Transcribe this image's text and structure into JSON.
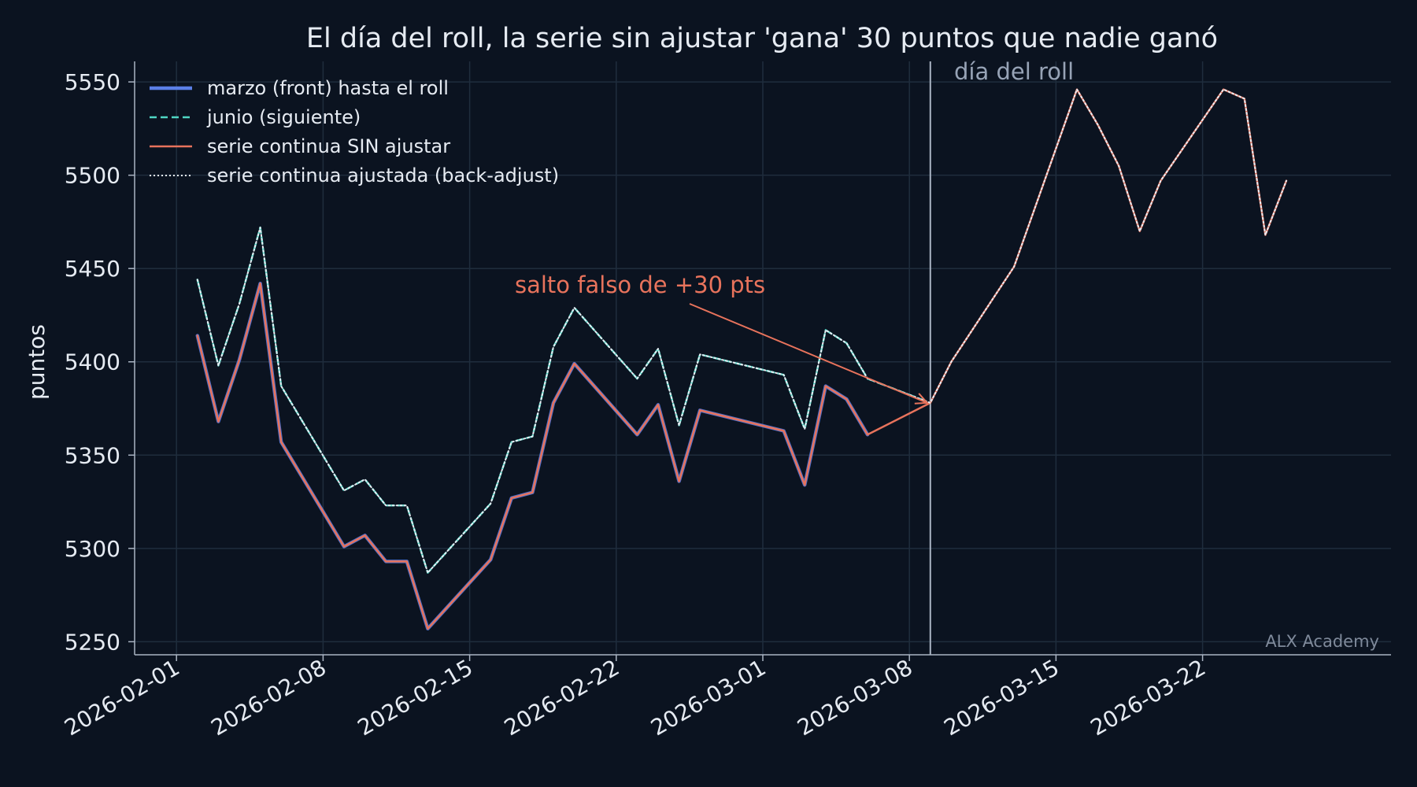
{
  "chart_data": {
    "type": "line",
    "title": "El día del roll, la serie sin ajustar 'gana' 30 puntos que nadie ganó",
    "xlabel": "",
    "ylabel": "puntos",
    "xlim": [
      "2026-01-30",
      "2026-03-31"
    ],
    "ylim": [
      5243,
      5561
    ],
    "x_ticks": [
      "2026-02-01",
      "2026-02-08",
      "2026-02-15",
      "2026-02-22",
      "2026-03-01",
      "2026-03-08",
      "2026-03-15",
      "2026-03-22"
    ],
    "y_ticks": [
      5250,
      5300,
      5350,
      5400,
      5450,
      5500,
      5550
    ],
    "grid": true,
    "legend_position": "top-left",
    "colors": {
      "background": "#0b1320",
      "grid": "#1f2d3d",
      "axis": "#aab4c3",
      "marzo": "#5b7fe6",
      "junio": "#4fd6c4",
      "sin_ajustar": "#e8735c",
      "ajustada": "#e6ebf2",
      "roll_line": "#aab4c3"
    },
    "roll_date": "2026-03-09",
    "roll_label": "día del roll",
    "annotation": {
      "text": "salto falso de +30 pts",
      "points_to": [
        "2026-03-09",
        5378
      ]
    },
    "watermark": "ALX Academy",
    "x": [
      "2026-02-02",
      "2026-02-03",
      "2026-02-04",
      "2026-02-05",
      "2026-02-06",
      "2026-02-09",
      "2026-02-10",
      "2026-02-11",
      "2026-02-12",
      "2026-02-13",
      "2026-02-16",
      "2026-02-17",
      "2026-02-18",
      "2026-02-19",
      "2026-02-20",
      "2026-02-23",
      "2026-02-24",
      "2026-02-25",
      "2026-02-26",
      "2026-03-02",
      "2026-03-03",
      "2026-03-04",
      "2026-03-05",
      "2026-03-06",
      "2026-03-09",
      "2026-03-10",
      "2026-03-11",
      "2026-03-12",
      "2026-03-13",
      "2026-03-16",
      "2026-03-17",
      "2026-03-18",
      "2026-03-19",
      "2026-03-20",
      "2026-03-23",
      "2026-03-24",
      "2026-03-25",
      "2026-03-26",
      "2026-03-27"
    ],
    "series": [
      {
        "name": "marzo (front) hasta el roll",
        "style": "solid-thick",
        "values": [
          5414,
          5368,
          5401,
          5442,
          5357,
          5301,
          5307,
          5293,
          5293,
          5257,
          5294,
          5327,
          5330,
          5378,
          5399,
          5361,
          5377,
          5336,
          5374,
          5363,
          5334,
          5387,
          5380,
          5361,
          null,
          null,
          null,
          null,
          null,
          null,
          null,
          null,
          null,
          null,
          null,
          null,
          null,
          null,
          null
        ]
      },
      {
        "name": "junio (siguiente)",
        "style": "dashed",
        "values": [
          5444,
          5398,
          5431,
          5472,
          5387,
          5331,
          5337,
          5323,
          5323,
          5287,
          5324,
          5357,
          5360,
          5408,
          5429,
          5391,
          5407,
          5366,
          5404,
          5393,
          5364,
          5417,
          5410,
          5391,
          5378,
          null,
          null,
          null,
          null,
          null,
          null,
          null,
          null,
          null,
          null,
          null,
          null,
          null,
          null
        ]
      },
      {
        "name": "serie continua SIN ajustar",
        "style": "solid-thin",
        "values": [
          5414,
          5368,
          5401,
          5442,
          5357,
          5301,
          5307,
          5293,
          5293,
          5257,
          5294,
          5327,
          5330,
          5378,
          5399,
          5361,
          5377,
          5336,
          5374,
          5363,
          5334,
          5387,
          5380,
          5361,
          5378,
          5400,
          5417,
          5434,
          5451,
          5546,
          5527,
          5505,
          5470,
          5497,
          5546,
          5541,
          5468,
          5497,
          null
        ]
      },
      {
        "name": "serie continua ajustada (back-adjust)",
        "style": "dotted",
        "values": [
          5444,
          5398,
          5431,
          5472,
          5387,
          5331,
          5337,
          5323,
          5323,
          5287,
          5324,
          5357,
          5360,
          5408,
          5429,
          5391,
          5407,
          5366,
          5404,
          5393,
          5364,
          5417,
          5410,
          5391,
          5378,
          5400,
          5417,
          5434,
          5451,
          5546,
          5527,
          5505,
          5470,
          5497,
          5546,
          5541,
          5468,
          5497,
          null
        ]
      }
    ]
  }
}
